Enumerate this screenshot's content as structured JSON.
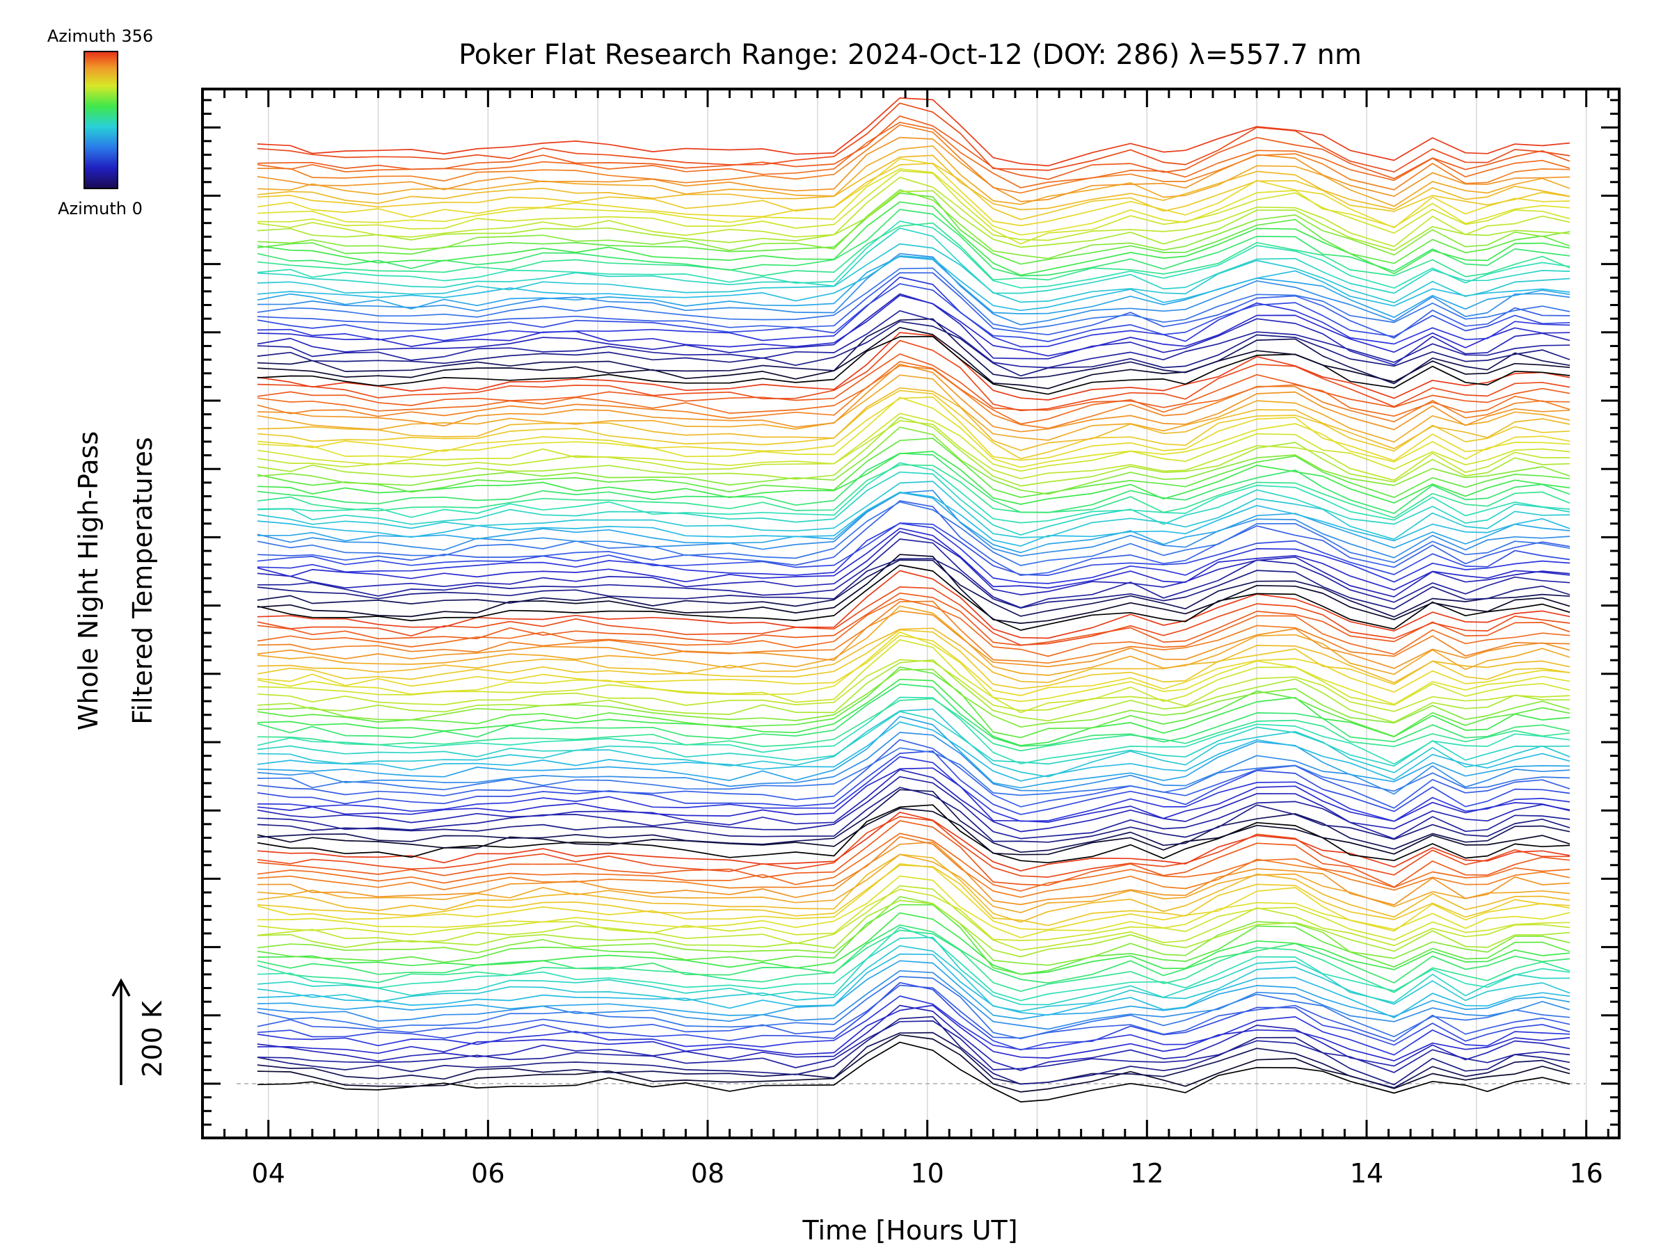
{
  "chart_data": {
    "type": "line",
    "title": "Poker Flat Research Range: 2024-Oct-12 (DOY: 286) λ=557.7 nm",
    "xlabel": "Time [Hours UT]",
    "ylabel": [
      "Whole Night High-Pass",
      "Filtered Temperatures"
    ],
    "xlim": [
      3.4,
      16.3
    ],
    "xticks": [
      "04",
      "06",
      "08",
      "10",
      "12",
      "14",
      "16"
    ],
    "x_tick_values": [
      4,
      6,
      8,
      10,
      12,
      14,
      16
    ],
    "grid": "vertical",
    "colorbar": {
      "top_label": "Azimuth 356",
      "bottom_label": "Azimuth 0",
      "colormap": "rainbow"
    },
    "scale_bar": "200 K",
    "series_count": 144,
    "time_hours": [
      3.9,
      4.2,
      4.4,
      4.7,
      5.0,
      5.3,
      5.6,
      5.9,
      6.2,
      6.5,
      6.8,
      7.1,
      7.5,
      7.8,
      8.2,
      8.5,
      8.8,
      9.15,
      9.45,
      9.75,
      10.05,
      10.3,
      10.6,
      10.85,
      11.1,
      11.5,
      11.85,
      12.15,
      12.35,
      12.65,
      13.0,
      13.35,
      13.6,
      13.85,
      14.25,
      14.6,
      14.9,
      15.1,
      15.35,
      15.6,
      15.85
    ],
    "color_stops": [
      "#000000",
      "#1e1e8c",
      "#2a2ad8",
      "#3a6ae8",
      "#27b7e8",
      "#30e0b8",
      "#3ee84a",
      "#b4e830",
      "#e6e02a",
      "#f0b028",
      "#f07020",
      "#e83a18"
    ],
    "colors": {
      "grid": "#d8d8d8",
      "axis": "#000000",
      "baseline": "#aaaaaa"
    }
  }
}
